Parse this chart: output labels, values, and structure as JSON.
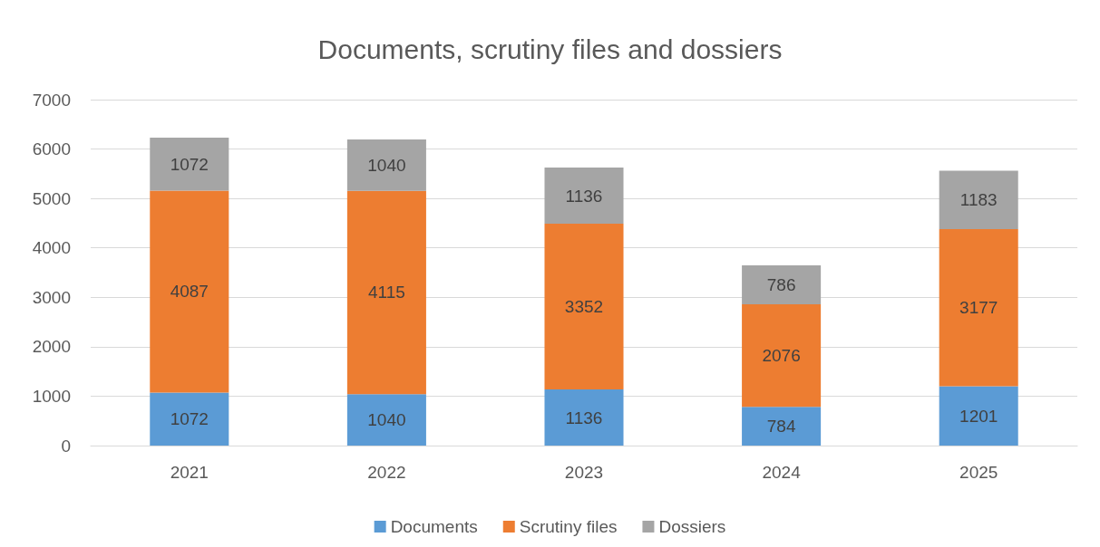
{
  "chart_data": {
    "type": "bar",
    "title": "Documents, scrutiny files and dossiers",
    "categories": [
      "2021",
      "2022",
      "2023",
      "2024",
      "2025"
    ],
    "series": [
      {
        "name": "Documents",
        "color": "#5b9bd5",
        "values": [
          1072,
          1040,
          1136,
          784,
          1201
        ]
      },
      {
        "name": "Scrutiny files",
        "color": "#ed7d31",
        "values": [
          4087,
          4115,
          3352,
          2076,
          3177
        ]
      },
      {
        "name": "Dossiers",
        "color": "#a5a5a5",
        "values": [
          1072,
          1040,
          1136,
          786,
          1183
        ]
      }
    ],
    "stacked": true,
    "data_labels": true,
    "ylim": [
      0,
      7000
    ],
    "yticks": [
      0,
      1000,
      2000,
      3000,
      4000,
      5000,
      6000,
      7000
    ],
    "grid": "y",
    "legend": "bottom"
  }
}
